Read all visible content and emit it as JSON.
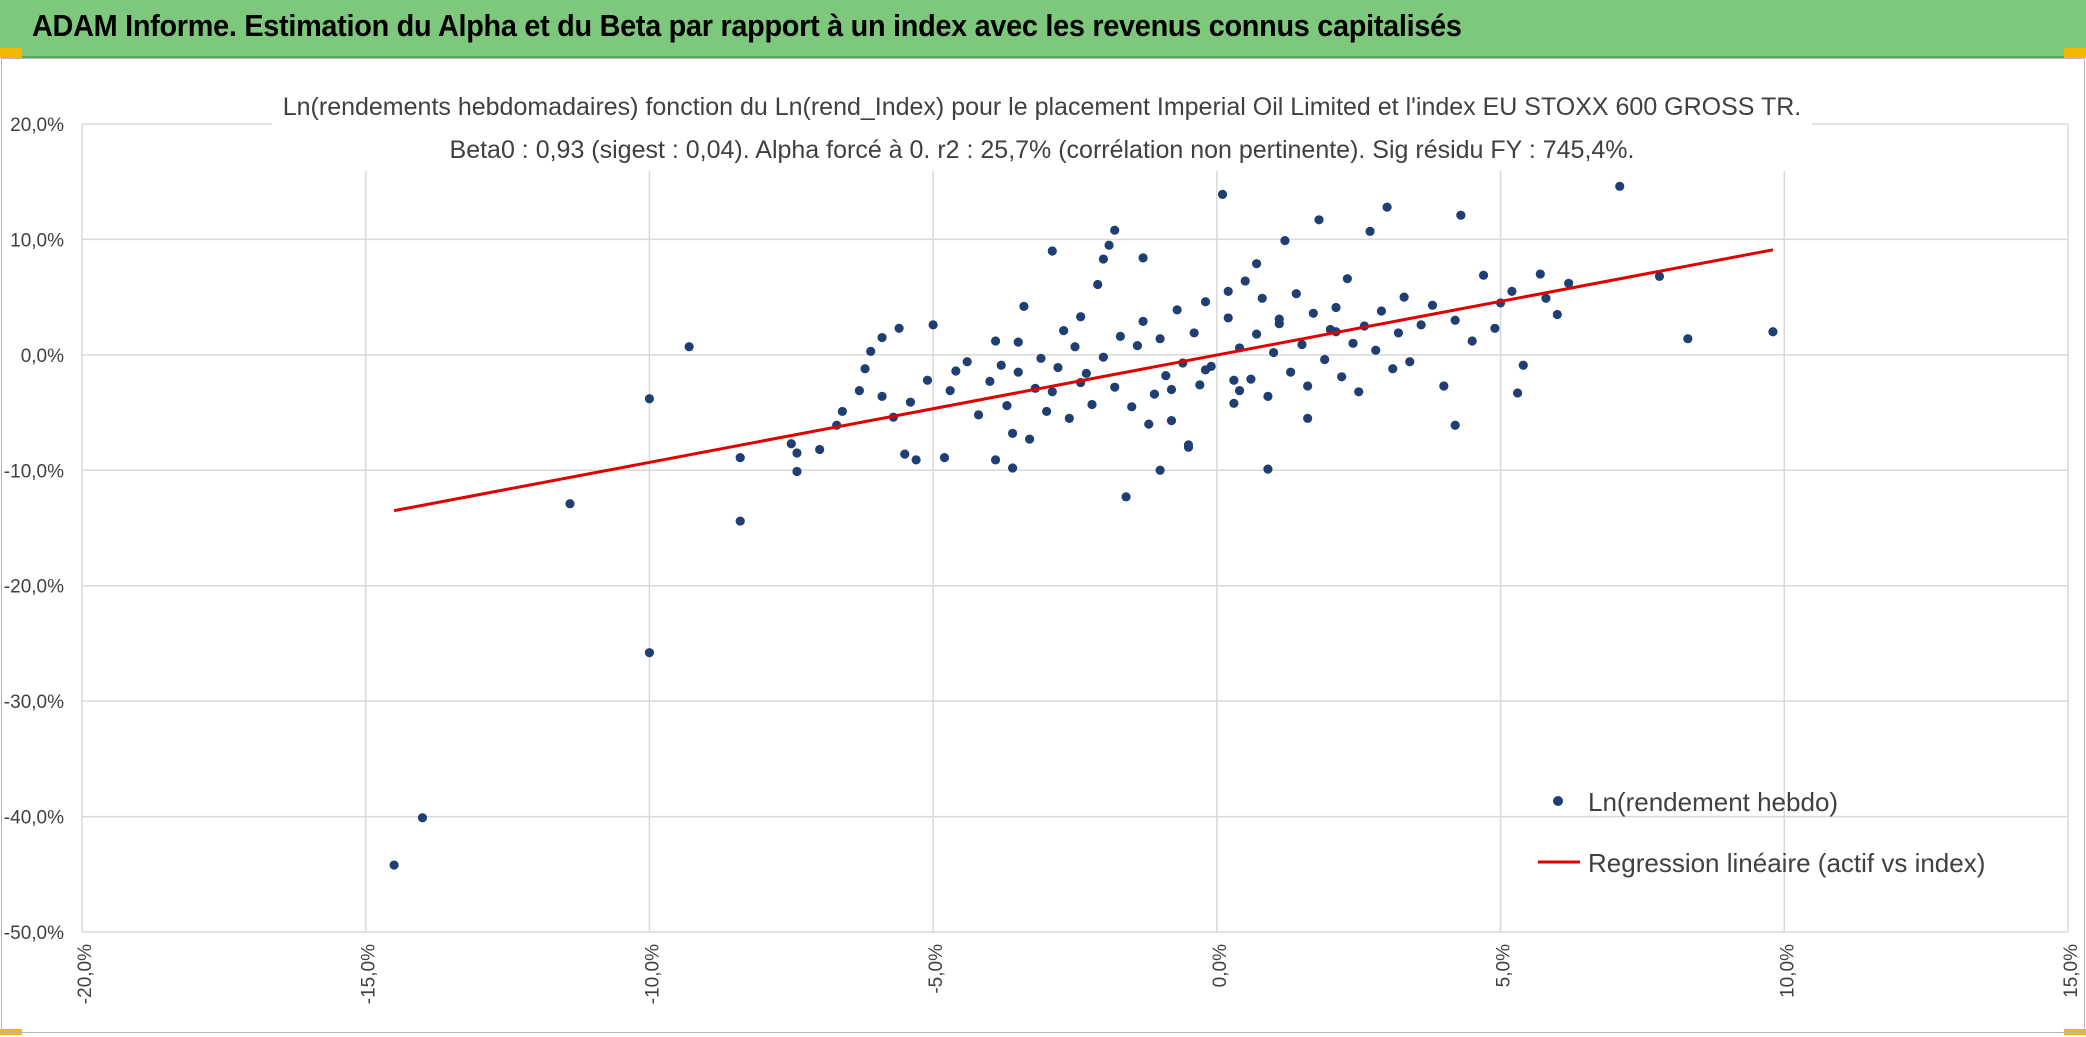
{
  "header": {
    "title": "ADAM Informe. Estimation du Alpha et du Beta par rapport à un index avec les revenus connus capitalisés"
  },
  "colors": {
    "header_bg": "#7ec87d",
    "accent": "#f2b800",
    "points": "#1f3f73",
    "regression": "#e00000",
    "grid": "#d9d9d9"
  },
  "chart_data": {
    "type": "scatter",
    "title": "Ln(rendements hebdomadaires) fonction du Ln(rend_Index) pour le placement Imperial Oil Limited et l'index EU STOXX 600 GROSS TR.",
    "subtitle": "Beta0 : 0,93 (sigest : 0,04). Alpha forcé à 0. r2 : 25,7% (corrélation non pertinente). Sig résidu FY : 745,4%.",
    "xlim": [
      -20,
      15
    ],
    "ylim": [
      -50,
      20
    ],
    "x_ticks": [
      "-20,0%",
      "-15,0%",
      "-10,0%",
      "-5,0%",
      "0,0%",
      "5,0%",
      "10,0%",
      "15,0%"
    ],
    "y_ticks": [
      "20,0%",
      "10,0%",
      "0,0%",
      "-10,0%",
      "-20,0%",
      "-30,0%",
      "-40,0%",
      "-50,0%"
    ],
    "grid": true,
    "legend_position": "bottom-right",
    "legend": [
      "Ln(rendement hebdo)",
      "Regression linéaire (actif vs index)"
    ],
    "series": [
      {
        "name": "Ln(rendement hebdo)",
        "kind": "points",
        "x": [
          -14.5,
          -14.0,
          -11.4,
          -10.0,
          -10.0,
          -9.3,
          -8.4,
          -8.4,
          -7.5,
          -7.4,
          -7.4,
          -7.0,
          -6.7,
          -6.6,
          -6.3,
          -6.2,
          -6.1,
          -5.9,
          -5.9,
          -5.7,
          -5.6,
          -5.5,
          -5.4,
          -5.3,
          -5.1,
          -5.0,
          -4.8,
          -4.7,
          -4.6,
          -4.4,
          -4.2,
          -4.0,
          -3.9,
          -3.9,
          -3.8,
          -3.7,
          -3.6,
          -3.6,
          -3.5,
          -3.5,
          -3.4,
          -3.3,
          -3.2,
          -3.1,
          -3.0,
          -2.9,
          -2.9,
          -2.8,
          -2.7,
          -2.6,
          -2.5,
          -2.4,
          -2.4,
          -2.3,
          -2.2,
          -2.1,
          -2.0,
          -1.9,
          -1.8,
          -1.7,
          -1.6,
          -1.5,
          -1.4,
          -1.3,
          -1.2,
          -1.1,
          -1.0,
          -0.9,
          -0.8,
          -0.7,
          -0.6,
          -0.5,
          -0.4,
          -0.3,
          -0.2,
          -0.1,
          0.1,
          0.2,
          0.3,
          0.4,
          0.5,
          0.6,
          0.7,
          0.8,
          0.9,
          1.0,
          1.1,
          1.2,
          1.3,
          1.4,
          1.5,
          1.6,
          1.7,
          1.8,
          1.9,
          2.0,
          2.1,
          2.2,
          2.3,
          2.4,
          2.5,
          2.6,
          2.7,
          2.8,
          2.9,
          3.0,
          3.1,
          3.2,
          3.3,
          3.4,
          3.6,
          3.8,
          4.0,
          4.2,
          4.2,
          4.3,
          4.5,
          4.7,
          4.9,
          5.0,
          5.2,
          5.3,
          5.4,
          5.7,
          5.8,
          6.0,
          6.2,
          7.1,
          7.8,
          8.3,
          9.8,
          0.2,
          0.3,
          -0.8,
          -1.8,
          -2.0,
          -0.2,
          0.7,
          1.1,
          1.6,
          2.1,
          -1.3,
          -0.5,
          0.4,
          -1.0,
          0.9
        ],
        "y": [
          -44.2,
          -40.1,
          -12.9,
          -25.8,
          -3.8,
          0.7,
          -14.4,
          -8.9,
          -7.7,
          -8.5,
          -10.1,
          -8.2,
          -6.1,
          -4.9,
          -3.1,
          -1.2,
          0.3,
          1.5,
          -3.6,
          -5.4,
          2.3,
          -8.6,
          -4.1,
          -9.1,
          -2.2,
          2.6,
          -8.9,
          -3.1,
          -1.4,
          -0.6,
          -5.2,
          -2.3,
          -9.1,
          1.2,
          -0.9,
          -4.4,
          -9.8,
          -6.8,
          -1.5,
          1.1,
          4.2,
          -7.3,
          -2.9,
          -0.3,
          -4.9,
          9.0,
          -3.2,
          -1.1,
          2.1,
          -5.5,
          0.7,
          -2.4,
          3.3,
          -1.6,
          -4.3,
          6.1,
          -0.2,
          9.5,
          -2.8,
          1.6,
          -12.3,
          -4.5,
          0.8,
          2.9,
          -6.0,
          -3.4,
          1.4,
          -1.8,
          -5.7,
          3.9,
          -0.7,
          -8.0,
          1.9,
          -2.6,
          4.6,
          -1.0,
          13.9,
          3.2,
          -4.2,
          0.6,
          6.4,
          -2.1,
          1.8,
          4.9,
          -3.6,
          0.2,
          2.7,
          9.9,
          -1.5,
          5.3,
          0.9,
          -2.7,
          3.6,
          11.7,
          -0.4,
          2.2,
          4.1,
          -1.9,
          6.6,
          1.0,
          -3.2,
          2.5,
          10.7,
          0.4,
          3.8,
          12.8,
          -1.2,
          1.9,
          5.0,
          -0.6,
          2.6,
          4.3,
          -2.7,
          3.0,
          -6.1,
          12.1,
          1.2,
          6.9,
          2.3,
          4.5,
          5.5,
          -3.3,
          -0.9,
          7.0,
          4.9,
          3.5,
          6.2,
          14.6,
          6.8,
          1.4,
          2.0,
          5.5,
          -2.2,
          -3.0,
          10.8,
          8.3,
          -1.3,
          7.9,
          3.1,
          -5.5,
          2.0,
          8.4,
          -7.8,
          -3.1,
          -10.0,
          -9.9
        ]
      },
      {
        "name": "Regression linéaire (actif vs index)",
        "kind": "line",
        "x": [
          -14.5,
          9.8
        ],
        "y": [
          -13.5,
          9.1
        ]
      }
    ]
  }
}
